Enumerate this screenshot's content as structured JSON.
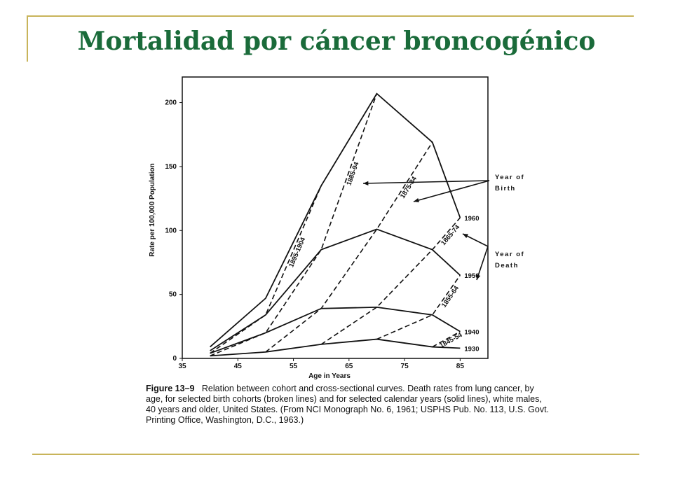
{
  "slide": {
    "title": "Mortalidad por cáncer broncogénico"
  },
  "chart_data": {
    "type": "line",
    "xlabel": "Age in Years",
    "ylabel": "Rate per 100,000 Population",
    "xlim": [
      35,
      90
    ],
    "ylim": [
      0,
      220
    ],
    "xticks": [
      35,
      45,
      55,
      65,
      75,
      85
    ],
    "yticks": [
      0,
      50,
      100,
      150,
      200
    ],
    "grid": false,
    "cross_sectional_series": [
      {
        "name": "1930",
        "style": "solid",
        "x": [
          40,
          50,
          60,
          70,
          80,
          85
        ],
        "y": [
          2,
          5,
          11,
          15,
          9,
          8
        ]
      },
      {
        "name": "1940",
        "style": "solid",
        "x": [
          40,
          50,
          60,
          70,
          80,
          85
        ],
        "y": [
          4,
          20,
          39,
          40,
          34,
          21
        ]
      },
      {
        "name": "1950",
        "style": "solid",
        "x": [
          40,
          50,
          60,
          70,
          80,
          85
        ],
        "y": [
          6,
          34,
          85,
          101,
          85,
          65
        ]
      },
      {
        "name": "1960",
        "style": "solid",
        "x": [
          40,
          50,
          60,
          70,
          80,
          85
        ],
        "y": [
          9,
          47,
          135,
          207,
          169,
          110
        ]
      }
    ],
    "cohort_series": [
      {
        "name": "1845-54",
        "style": "dashed",
        "x": [
          80,
          85
        ],
        "y": [
          9,
          21
        ]
      },
      {
        "name": "1855-64",
        "style": "dashed",
        "x": [
          70,
          80,
          85
        ],
        "y": [
          15,
          34,
          65
        ]
      },
      {
        "name": "1865-74",
        "style": "dashed",
        "x": [
          60,
          70,
          80,
          85
        ],
        "y": [
          11,
          40,
          85,
          110
        ]
      },
      {
        "name": "1875-84",
        "style": "dashed",
        "x": [
          50,
          60,
          70,
          80
        ],
        "y": [
          5,
          39,
          101,
          169
        ]
      },
      {
        "name": "1885-94",
        "style": "dashed",
        "x": [
          40,
          50,
          60,
          70
        ],
        "y": [
          2,
          20,
          85,
          207
        ]
      },
      {
        "name": "1895-1904",
        "style": "dashed",
        "x": [
          40,
          50,
          60
        ],
        "y": [
          4,
          34,
          135
        ]
      }
    ],
    "annotations": {
      "year_of_birth": [
        "Year of",
        "Birth"
      ],
      "year_of_death": [
        "Year of",
        "Death"
      ]
    }
  },
  "caption": {
    "figure_label": "Figure 13–9",
    "text": "Relation between cohort and cross-sectional curves. Death rates from lung cancer, by age, for selected birth cohorts (broken lines) and for selected calendar years (solid lines), white males, 40 years and older, United States. (From NCI Monograph No. 6, 1961; USPHS Pub. No. 113, U.S. Govt. Printing Office, Washington, D.C., 1963.)"
  }
}
